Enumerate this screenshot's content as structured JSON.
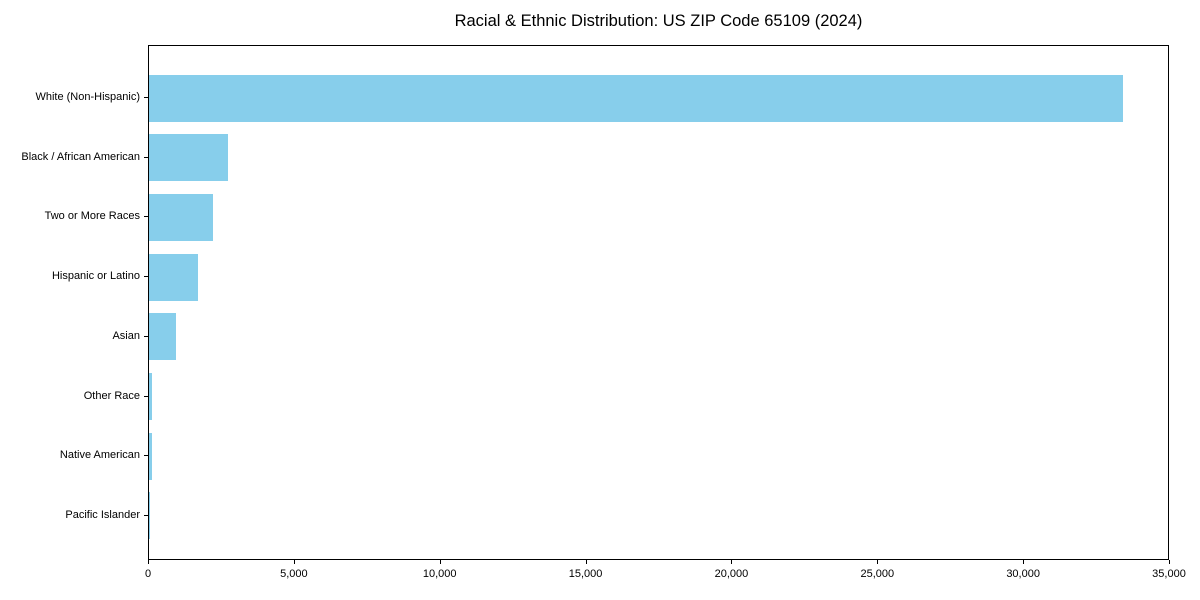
{
  "chart_data": {
    "type": "bar",
    "orientation": "horizontal",
    "title": "Racial & Ethnic Distribution: US ZIP Code 65109 (2024)",
    "categories": [
      "White (Non-Hispanic)",
      "Black / African American",
      "Two or More Races",
      "Hispanic or Latino",
      "Asian",
      "Other Race",
      "Native American",
      "Pacific Islander"
    ],
    "values": [
      33400,
      2700,
      2190,
      1670,
      930,
      100,
      90,
      15
    ],
    "xlabel": "",
    "ylabel": "",
    "xlim": [
      0,
      35000
    ],
    "xticks": [
      0,
      5000,
      10000,
      15000,
      20000,
      25000,
      30000,
      35000
    ],
    "xtick_labels": [
      "0",
      "5,000",
      "10,000",
      "15,000",
      "20,000",
      "25,000",
      "30,000",
      "35,000"
    ],
    "bar_color": "#87CEEB",
    "axis_color": "#000000",
    "text_color": "#000000",
    "background_color": "#ffffff",
    "grid": false,
    "legend": null
  }
}
